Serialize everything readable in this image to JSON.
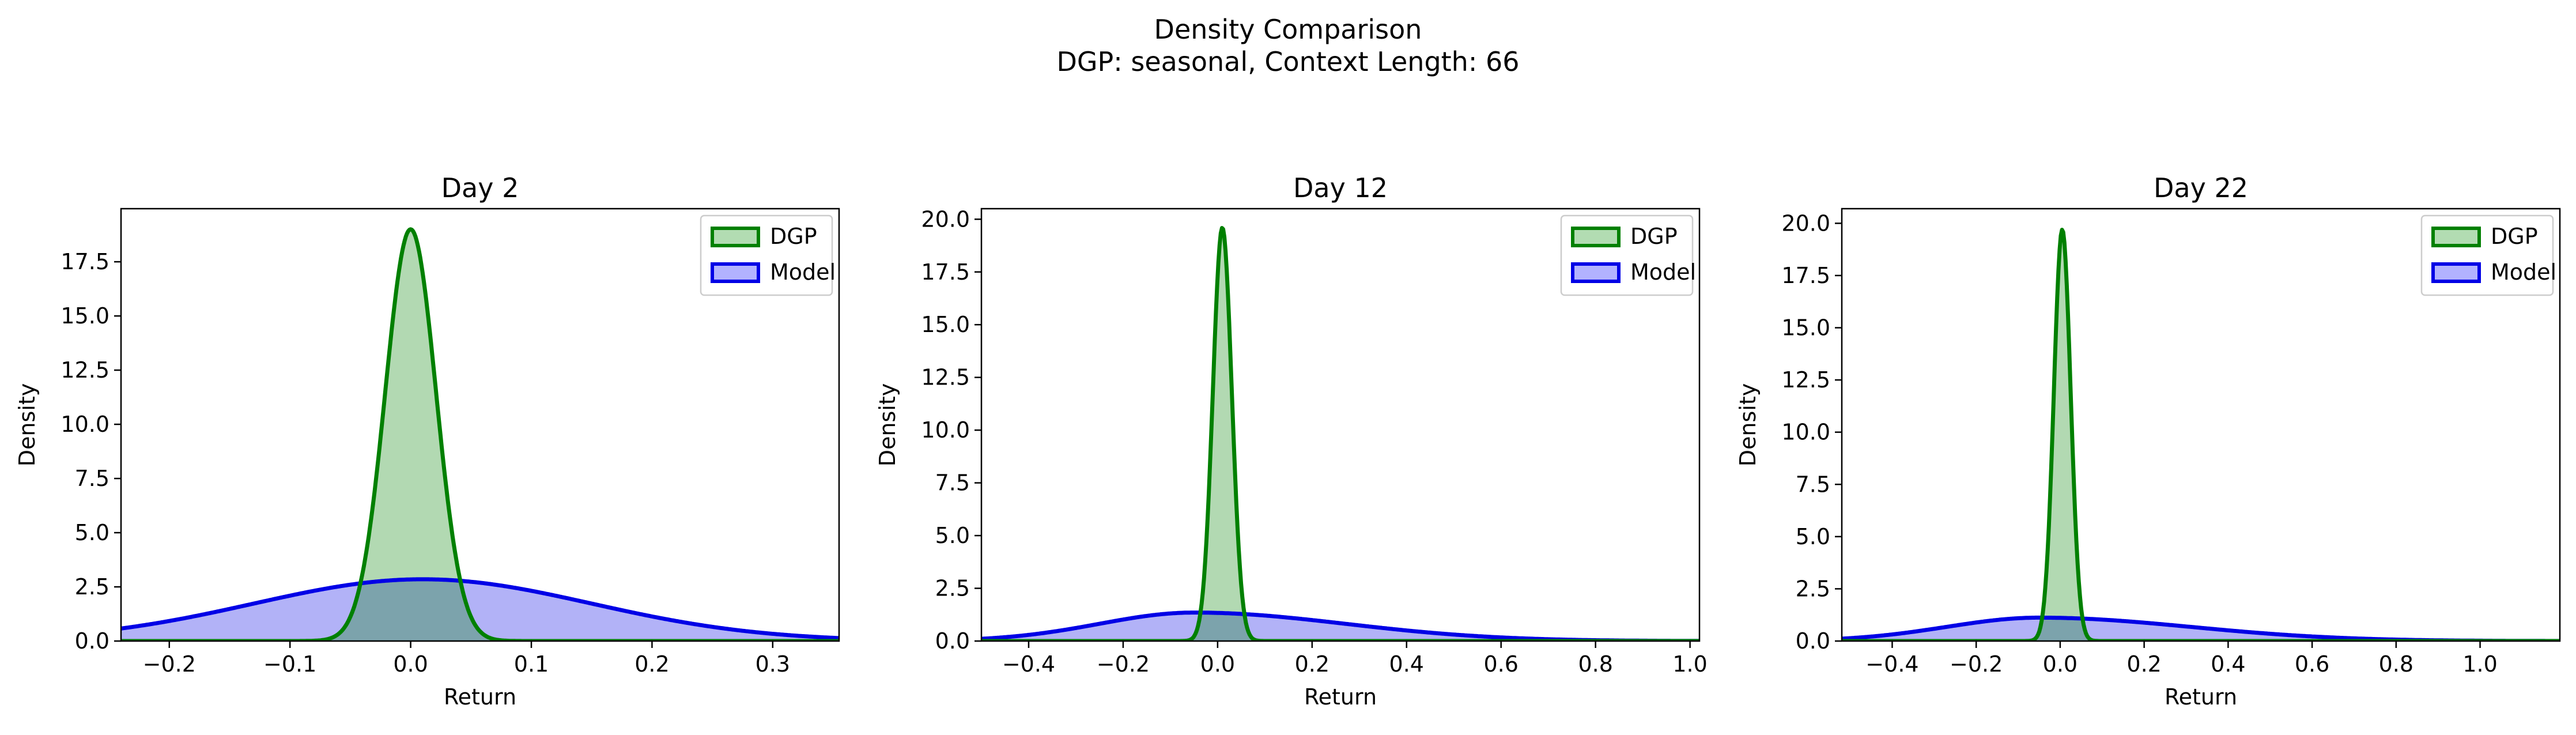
{
  "figure": {
    "title": "Density Comparison",
    "subtitle": "DGP: seasonal, Context Length: 66"
  },
  "colors": {
    "dgp_line": "#008000",
    "dgp_fill": "#b2dcb2",
    "model_line": "#0000e6",
    "model_fill": "#b2b2ff",
    "axis": "#000000"
  },
  "chart_data": [
    {
      "type": "area",
      "title": "Day 2",
      "xlabel": "Return",
      "ylabel": "Density",
      "xlim": [
        -0.24,
        0.355
      ],
      "ylim": [
        0,
        19.95
      ],
      "xticks": [
        -0.2,
        -0.1,
        0.0,
        0.1,
        0.2,
        0.3
      ],
      "yticks": [
        0.0,
        2.5,
        5.0,
        7.5,
        10.0,
        12.5,
        15.0,
        17.5
      ],
      "legend": {
        "position": "top-right",
        "entries": [
          "DGP",
          "Model"
        ]
      },
      "grid": false,
      "series": [
        {
          "name": "DGP",
          "shape": "normal",
          "mean": 0.0,
          "std": 0.021,
          "peak": 19.0
        },
        {
          "name": "Model",
          "shape": "normal",
          "mean": 0.01,
          "std": 0.14,
          "peak": 2.85
        }
      ]
    },
    {
      "type": "area",
      "title": "Day 12",
      "xlabel": "Return",
      "ylabel": "Density",
      "xlim": [
        -0.5,
        1.02
      ],
      "ylim": [
        0,
        20.5
      ],
      "xticks": [
        -0.4,
        -0.2,
        0.0,
        0.2,
        0.4,
        0.6,
        0.8,
        1.0
      ],
      "yticks": [
        0.0,
        2.5,
        5.0,
        7.5,
        10.0,
        12.5,
        15.0,
        17.5,
        20.0
      ],
      "legend": {
        "position": "top-right",
        "entries": [
          "DGP",
          "Model"
        ]
      },
      "grid": false,
      "series": [
        {
          "name": "DGP",
          "shape": "normal",
          "mean": 0.01,
          "std": 0.02,
          "peak": 19.6
        },
        {
          "name": "Model",
          "shape": "skewnormal",
          "mean": -0.05,
          "std_left": 0.2,
          "std_right": 0.32,
          "peak": 1.35
        }
      ]
    },
    {
      "type": "area",
      "title": "Day 22",
      "xlabel": "Return",
      "ylabel": "Density",
      "xlim": [
        -0.52,
        1.19
      ],
      "ylim": [
        0,
        20.7
      ],
      "xticks": [
        -0.4,
        -0.2,
        0.0,
        0.2,
        0.4,
        0.6,
        0.8,
        1.0
      ],
      "yticks": [
        0.0,
        2.5,
        5.0,
        7.5,
        10.0,
        12.5,
        15.0,
        17.5,
        20.0
      ],
      "legend": {
        "position": "top-right",
        "entries": [
          "DGP",
          "Model"
        ]
      },
      "grid": false,
      "series": [
        {
          "name": "DGP",
          "shape": "normal",
          "mean": 0.005,
          "std": 0.02,
          "peak": 19.7
        },
        {
          "name": "Model",
          "shape": "skewnormal",
          "mean": -0.05,
          "std_left": 0.22,
          "std_right": 0.36,
          "peak": 1.12
        }
      ]
    }
  ]
}
